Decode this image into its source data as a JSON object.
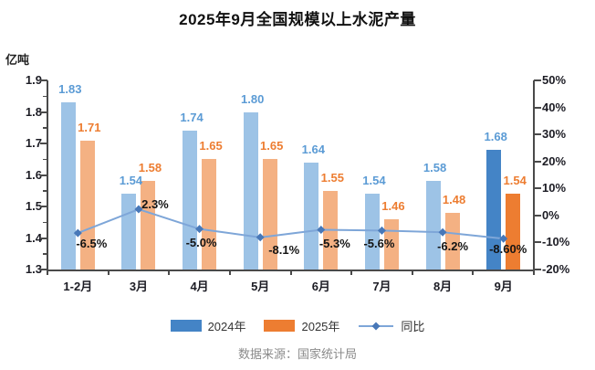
{
  "title": "2025年9月全国规模以上水泥产量",
  "unit_label": "亿吨",
  "source": "数据来源：国家统计局",
  "legend": {
    "series1": "2024年",
    "series2": "2025年",
    "line": "同比"
  },
  "colors": {
    "bar_2024_light": "#9DC3E6",
    "bar_2024_dark": "#4484C6",
    "bar_2025_light": "#F4B183",
    "bar_2025_dark": "#ED7D31",
    "line": "#7EA6D8",
    "marker": "#4878B8",
    "label_2024": "#5B9BD5",
    "label_2025": "#ED7D31",
    "label_line": "#141414",
    "axis": "#4a4a4a"
  },
  "chart_data": {
    "type": "bar+line",
    "title": "2025年9月全国规模以上水泥产量",
    "categories": [
      "1-2月",
      "3月",
      "4月",
      "5月",
      "6月",
      "7月",
      "8月",
      "9月"
    ],
    "series": [
      {
        "name": "2024年",
        "values": [
          1.83,
          1.54,
          1.74,
          1.8,
          1.64,
          1.54,
          1.58,
          1.68
        ],
        "labels": [
          "1.83",
          "1.54",
          "1.74",
          "1.80",
          "1.64",
          "1.54",
          "1.58",
          "1.68"
        ]
      },
      {
        "name": "2025年",
        "values": [
          1.71,
          1.58,
          1.65,
          1.65,
          1.55,
          1.46,
          1.48,
          1.54
        ],
        "labels": [
          "1.71",
          "1.58",
          "1.65",
          "1.65",
          "1.55",
          "1.46",
          "1.48",
          "1.54"
        ]
      }
    ],
    "line_series": {
      "name": "同比",
      "values": [
        -6.5,
        2.3,
        -5.0,
        -8.1,
        -5.3,
        -5.6,
        -6.2,
        -8.6
      ],
      "labels": [
        "-6.5%",
        "2.3%",
        "-5.0%",
        "-8.1%",
        "-5.3%",
        "-5.6%",
        "-6.2%",
        "-8.60%"
      ]
    },
    "left_axis": {
      "label": "亿吨",
      "min": 1.3,
      "max": 1.9,
      "ticks": [
        "1.9",
        "1.8",
        "1.7",
        "1.6",
        "1.5",
        "1.4",
        "1.3"
      ]
    },
    "right_axis": {
      "min": -20,
      "max": 50,
      "ticks": [
        "50%",
        "40%",
        "30%",
        "20%",
        "10%",
        "0%",
        "-10%",
        "-20%"
      ]
    },
    "highlight_index": 7,
    "grid": false,
    "legend_position": "bottom"
  }
}
